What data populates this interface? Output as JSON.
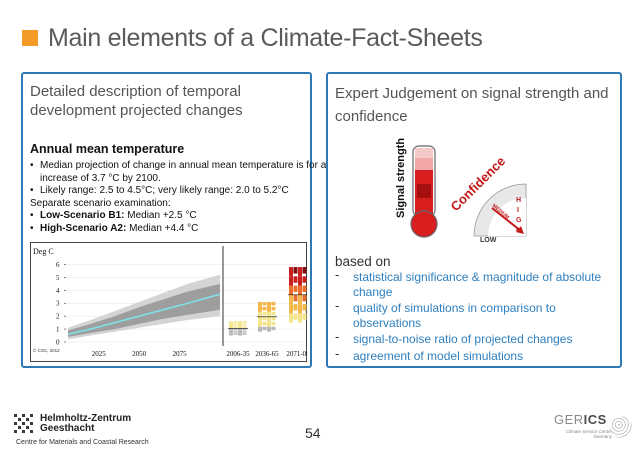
{
  "slide": {
    "title": "Main elements of a Climate-Fact-Sheets",
    "accent_color": "#f39a26",
    "panel_border_color": "#2e79b8",
    "page_number": "54"
  },
  "left_panel": {
    "heading": "Detailed description of temporal development  projected changes",
    "section_title": "Annual mean temperature",
    "lines": [
      {
        "bullet": "•",
        "text": "Median projection of change in annual mean temperature is for an"
      },
      {
        "bullet": "",
        "text": "increase of 3.7 °C by 2100.",
        "indent": true
      },
      {
        "bullet": "•",
        "text": "Likely range: 2.5 to 4.5°C; very likely range: 2.0 to 5.2°C"
      },
      {
        "bullet": "",
        "text": "Separate scenario examination:"
      }
    ],
    "scenario_low_label": "Low-Scenario B1:",
    "scenario_low_value": " Median +2.5 °C",
    "scenario_high_label": "High-Scenario A2:",
    "scenario_high_value": " Median +4.4 °C"
  },
  "chart_data": {
    "type": "area",
    "ylabel": "Deg C",
    "ylim": [
      0,
      6.5
    ],
    "yticks": [
      "0",
      "1",
      "2",
      "3",
      "4",
      "5",
      "6"
    ],
    "x_tick_labels": [
      "2025",
      "2050",
      "2075",
      "2006-35",
      "2036-65",
      "2071-00"
    ],
    "copyright": "© CSC, 2012",
    "timeseries": {
      "x": [
        2006,
        2020,
        2035,
        2050,
        2065,
        2080,
        2100
      ],
      "median": [
        0.6,
        1.0,
        1.5,
        2.0,
        2.5,
        3.0,
        3.7
      ],
      "likely_low": [
        0.4,
        0.7,
        1.0,
        1.4,
        1.8,
        2.1,
        2.5
      ],
      "likely_high": [
        0.9,
        1.4,
        2.0,
        2.7,
        3.3,
        3.9,
        4.5
      ],
      "very_likely_low": [
        0.2,
        0.5,
        0.8,
        1.1,
        1.4,
        1.7,
        2.0
      ],
      "very_likely_high": [
        1.1,
        1.7,
        2.4,
        3.1,
        3.8,
        4.5,
        5.2
      ]
    },
    "periods": [
      {
        "label": "2006-35",
        "min": 0.5,
        "max": 1.6
      },
      {
        "label": "2036-65",
        "min": 0.8,
        "max": 3.1
      },
      {
        "label": "2071-00",
        "min": 1.5,
        "max": 5.8
      }
    ]
  },
  "right_panel": {
    "heading": "Expert Judgement on signal strength and confidence",
    "signal_label": "Signal strength",
    "confidence_label": "Confidence",
    "gauge_letters": [
      "H",
      "I",
      "G",
      "H"
    ],
    "gauge_low": "LOW",
    "gauge_medium": "MEDIUM",
    "based_on": "based on",
    "criteria": [
      "statistical significance & magnitude of absolute change",
      "quality of simulations in comparison to observations",
      "signal-to-noise ratio of projected changes",
      "agreement of model simulations"
    ]
  },
  "footer": {
    "institution_line1": "Helmholtz-Zentrum",
    "institution_line2": "Geesthacht",
    "institution_sub": "Centre for Materials and Coastal Research",
    "gerics_main": "GER",
    "gerics_bold": "ICS",
    "gerics_sub": "Climate Service Center Germany"
  }
}
